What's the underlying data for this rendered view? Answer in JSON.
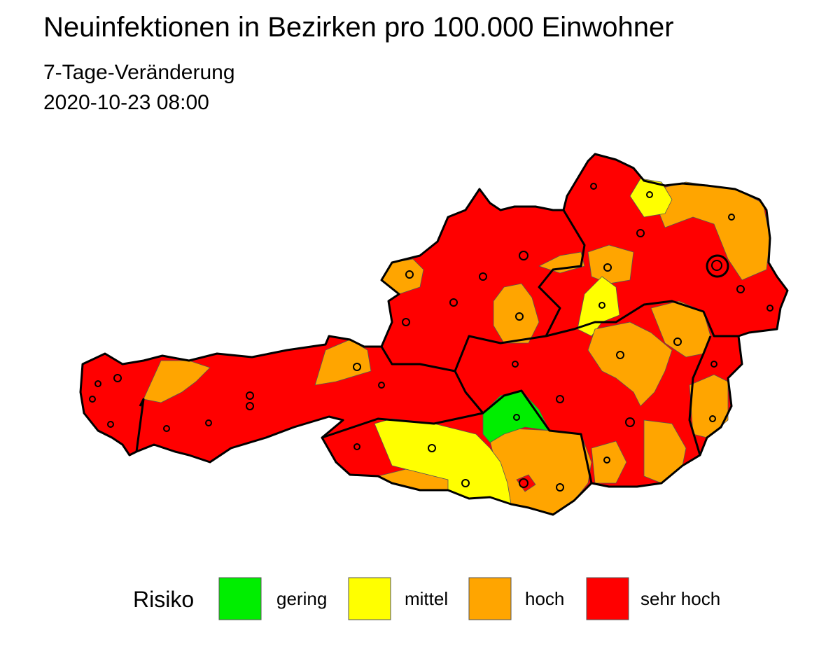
{
  "title": "Neuinfektionen in Bezirken pro 100.000 Einwohner",
  "subtitle": "7-Tage-Veränderung",
  "date": "2020-10-23 08:00",
  "legend": {
    "title": "Risiko",
    "items": [
      {
        "label": "gering",
        "color": "#00ee00"
      },
      {
        "label": "mittel",
        "color": "#ffff00"
      },
      {
        "label": "hoch",
        "color": "#ffa500"
      },
      {
        "label": "sehr hoch",
        "color": "#ff0000"
      }
    ]
  }
}
